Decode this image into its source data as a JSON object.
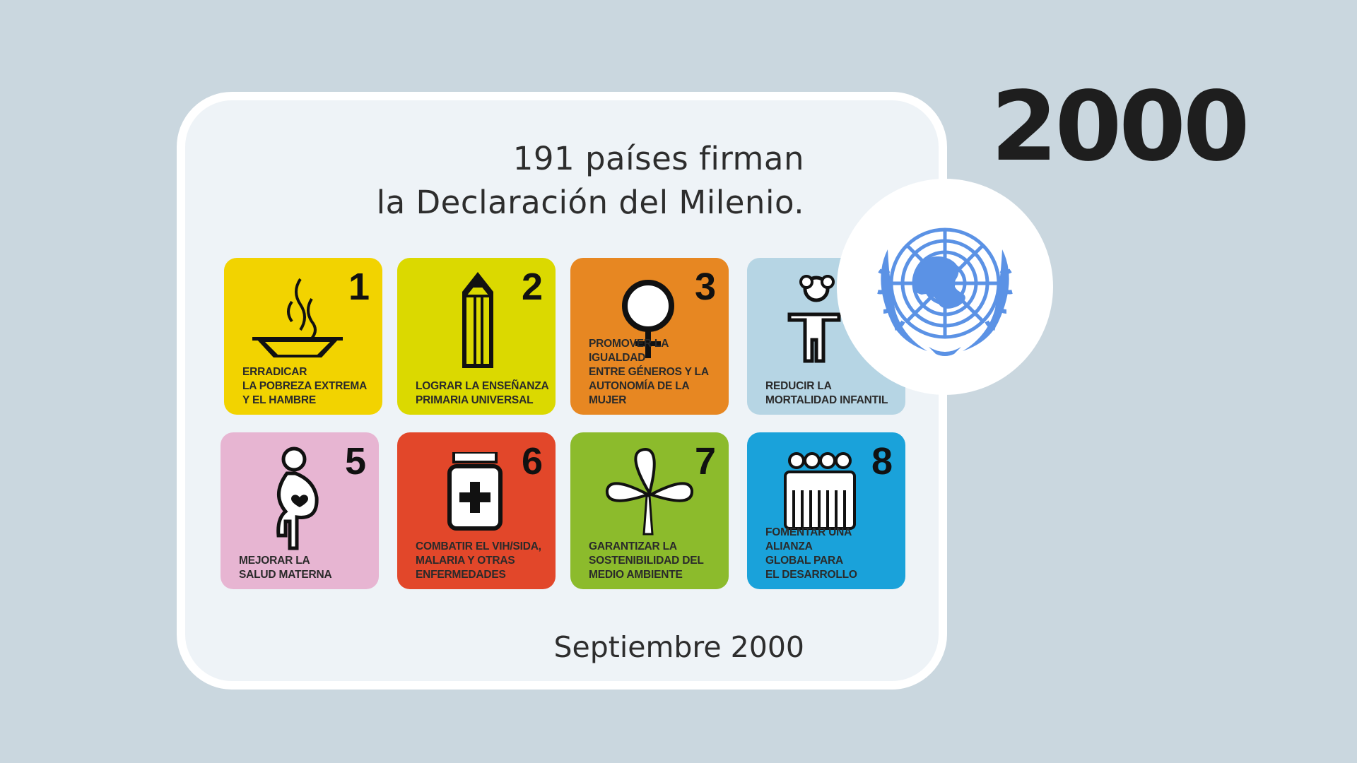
{
  "headline": {
    "line1": "191 países firman",
    "line2": "la Declaración del Milenio."
  },
  "year": "2000",
  "date": "Septiembre 2000",
  "goals": [
    {
      "number": "1",
      "label": "ERRADICAR\nLA POBREZA EXTREMA\nY EL HAMBRE",
      "color": "#f2d300",
      "icon": "bowl-icon"
    },
    {
      "number": "2",
      "label": "LOGRAR LA ENSEÑANZA\nPRIMARIA UNIVERSAL",
      "color": "#dbd900",
      "icon": "pencil-icon"
    },
    {
      "number": "3",
      "label": "PROMOVER LA IGUALDAD\nENTRE GÉNEROS Y LA\nAUTONOMÍA DE LA MUJER",
      "color": "#e78722",
      "icon": "female-symbol-icon"
    },
    {
      "number": "",
      "label": "REDUCIR LA\nMORTALIDAD INFANTIL",
      "color": "#b6d5e4",
      "icon": "child-icon"
    },
    {
      "number": "5",
      "label": "MEJORAR LA\nSALUD MATERNA",
      "color": "#e7b5d2",
      "icon": "pregnant-woman-icon"
    },
    {
      "number": "6",
      "label": "COMBATIR EL VIH/SIDA,\nMALARIA Y OTRAS\nENFERMEDADES",
      "color": "#e2472a",
      "icon": "medicine-bottle-icon"
    },
    {
      "number": "7",
      "label": "GARANTIZAR LA\nSOSTENIBILIDAD DEL\nMEDIO AMBIENTE",
      "color": "#8cbb2c",
      "icon": "plant-icon"
    },
    {
      "number": "8",
      "label": "FOMENTAR UNA ALIANZA\nGLOBAL PARA\nEL DESARROLLO",
      "color": "#1aa2da",
      "icon": "people-group-icon"
    }
  ],
  "colors": {
    "background": "#cad7df",
    "card": "#eef3f7",
    "un_blue": "#5b92e5"
  },
  "logo": "un-emblem-icon"
}
